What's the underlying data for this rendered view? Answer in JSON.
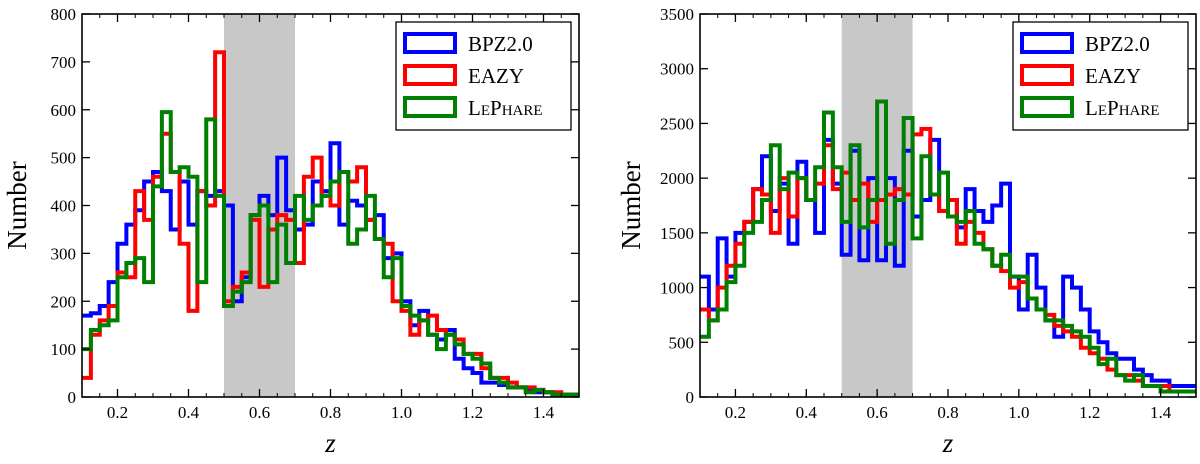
{
  "chart_data": [
    {
      "type": "line",
      "step": true,
      "xlabel": "z",
      "ylabel": "Number",
      "xlim": [
        0.1,
        1.5
      ],
      "ylim": [
        0,
        800
      ],
      "xticks": [
        "0.2",
        "0.4",
        "0.6",
        "0.8",
        "1.0",
        "1.2",
        "1.4"
      ],
      "yticks": [
        "0",
        "100",
        "200",
        "300",
        "400",
        "500",
        "600",
        "700",
        "800"
      ],
      "shaded_region": [
        0.5,
        0.7
      ],
      "legend": {
        "position": "top-right"
      },
      "bin_edges": [
        0.1,
        0.125,
        0.15,
        0.175,
        0.2,
        0.225,
        0.25,
        0.275,
        0.3,
        0.325,
        0.35,
        0.375,
        0.4,
        0.425,
        0.45,
        0.475,
        0.5,
        0.525,
        0.55,
        0.575,
        0.6,
        0.625,
        0.65,
        0.675,
        0.7,
        0.725,
        0.75,
        0.775,
        0.8,
        0.825,
        0.85,
        0.875,
        0.9,
        0.925,
        0.95,
        0.975,
        1.0,
        1.025,
        1.05,
        1.075,
        1.1,
        1.125,
        1.15,
        1.175,
        1.2,
        1.225,
        1.25,
        1.275,
        1.3,
        1.325,
        1.35,
        1.375,
        1.4,
        1.425,
        1.45,
        1.475,
        1.5
      ],
      "series": [
        {
          "name": "BPZ2.0",
          "color": "#0000ff",
          "values": [
            170,
            175,
            190,
            240,
            320,
            360,
            390,
            450,
            470,
            430,
            350,
            450,
            360,
            430,
            420,
            430,
            400,
            200,
            250,
            380,
            420,
            380,
            500,
            390,
            350,
            360,
            450,
            430,
            530,
            360,
            410,
            400,
            370,
            380,
            290,
            300,
            200,
            150,
            180,
            130,
            120,
            140,
            80,
            60,
            50,
            30,
            30,
            25,
            20,
            20,
            15,
            10,
            10,
            5,
            5,
            5
          ]
        },
        {
          "name": "EAZY",
          "color": "#ff0000",
          "values": [
            40,
            130,
            160,
            190,
            260,
            250,
            430,
            370,
            460,
            550,
            470,
            320,
            180,
            430,
            400,
            720,
            200,
            230,
            260,
            370,
            230,
            350,
            380,
            370,
            280,
            460,
            500,
            420,
            400,
            470,
            450,
            480,
            370,
            330,
            320,
            200,
            180,
            130,
            160,
            170,
            140,
            130,
            120,
            90,
            90,
            60,
            40,
            40,
            30,
            20,
            20,
            15,
            10,
            10,
            5,
            5
          ]
        },
        {
          "name": "LePhare",
          "color": "#008000",
          "values": [
            100,
            140,
            150,
            160,
            250,
            280,
            290,
            240,
            440,
            595,
            470,
            480,
            460,
            240,
            580,
            420,
            190,
            220,
            240,
            380,
            400,
            240,
            360,
            280,
            420,
            370,
            400,
            420,
            450,
            470,
            320,
            350,
            420,
            330,
            250,
            290,
            190,
            170,
            160,
            130,
            100,
            130,
            110,
            90,
            80,
            70,
            40,
            30,
            20,
            20,
            10,
            15,
            10,
            5,
            5,
            5
          ]
        }
      ]
    },
    {
      "type": "line",
      "step": true,
      "xlabel": "z",
      "ylabel": "Number",
      "xlim": [
        0.1,
        1.5
      ],
      "ylim": [
        0,
        3500
      ],
      "xticks": [
        "0.2",
        "0.4",
        "0.6",
        "0.8",
        "1.0",
        "1.2",
        "1.4"
      ],
      "yticks": [
        "0",
        "500",
        "1000",
        "1500",
        "2000",
        "2500",
        "3000",
        "3500"
      ],
      "shaded_region": [
        0.5,
        0.7
      ],
      "legend": {
        "position": "top-right"
      },
      "bin_edges": [
        0.1,
        0.125,
        0.15,
        0.175,
        0.2,
        0.225,
        0.25,
        0.275,
        0.3,
        0.325,
        0.35,
        0.375,
        0.4,
        0.425,
        0.45,
        0.475,
        0.5,
        0.525,
        0.55,
        0.575,
        0.6,
        0.625,
        0.65,
        0.675,
        0.7,
        0.725,
        0.75,
        0.775,
        0.8,
        0.825,
        0.85,
        0.875,
        0.9,
        0.925,
        0.95,
        0.975,
        1.0,
        1.025,
        1.05,
        1.075,
        1.1,
        1.125,
        1.15,
        1.175,
        1.2,
        1.225,
        1.25,
        1.275,
        1.3,
        1.325,
        1.35,
        1.375,
        1.4,
        1.425,
        1.45,
        1.475,
        1.5
      ],
      "series": [
        {
          "name": "BPZ2.0",
          "color": "#0000ff",
          "values": [
            1100,
            800,
            1450,
            1100,
            1500,
            1600,
            1900,
            2200,
            1700,
            1950,
            1400,
            2150,
            1800,
            1500,
            2350,
            1950,
            1300,
            2250,
            1250,
            2000,
            1250,
            2000,
            1200,
            2250,
            1650,
            1800,
            2350,
            1700,
            1800,
            1550,
            1900,
            1700,
            1600,
            1750,
            1950,
            1100,
            800,
            1300,
            1000,
            700,
            550,
            1100,
            1000,
            800,
            600,
            500,
            400,
            350,
            350,
            250,
            200,
            150,
            150,
            100,
            100,
            100
          ]
        },
        {
          "name": "EAZY",
          "color": "#ff0000",
          "values": [
            800,
            700,
            1000,
            1200,
            1400,
            1600,
            1900,
            1850,
            1500,
            2000,
            1650,
            2000,
            1800,
            1950,
            2300,
            1900,
            2050,
            1800,
            1950,
            1600,
            1800,
            1850,
            1900,
            1850,
            2400,
            2450,
            1850,
            1700,
            1800,
            1400,
            1600,
            1500,
            1350,
            1200,
            1150,
            1000,
            1050,
            900,
            800,
            750,
            650,
            600,
            550,
            450,
            400,
            350,
            250,
            200,
            200,
            150,
            100,
            100,
            100,
            50,
            50,
            50
          ]
        },
        {
          "name": "LePhare",
          "color": "#008000",
          "values": [
            550,
            700,
            800,
            1050,
            1200,
            1500,
            1600,
            1800,
            2300,
            1900,
            2050,
            2000,
            1800,
            2100,
            2600,
            2100,
            1600,
            2300,
            1550,
            1800,
            2700,
            1400,
            1800,
            2550,
            1450,
            2200,
            1850,
            2050,
            1650,
            1600,
            1700,
            1400,
            1350,
            1200,
            1300,
            1100,
            1100,
            900,
            800,
            700,
            700,
            650,
            600,
            550,
            450,
            300,
            350,
            200,
            150,
            200,
            100,
            100,
            50,
            50,
            50,
            50
          ]
        }
      ]
    }
  ]
}
